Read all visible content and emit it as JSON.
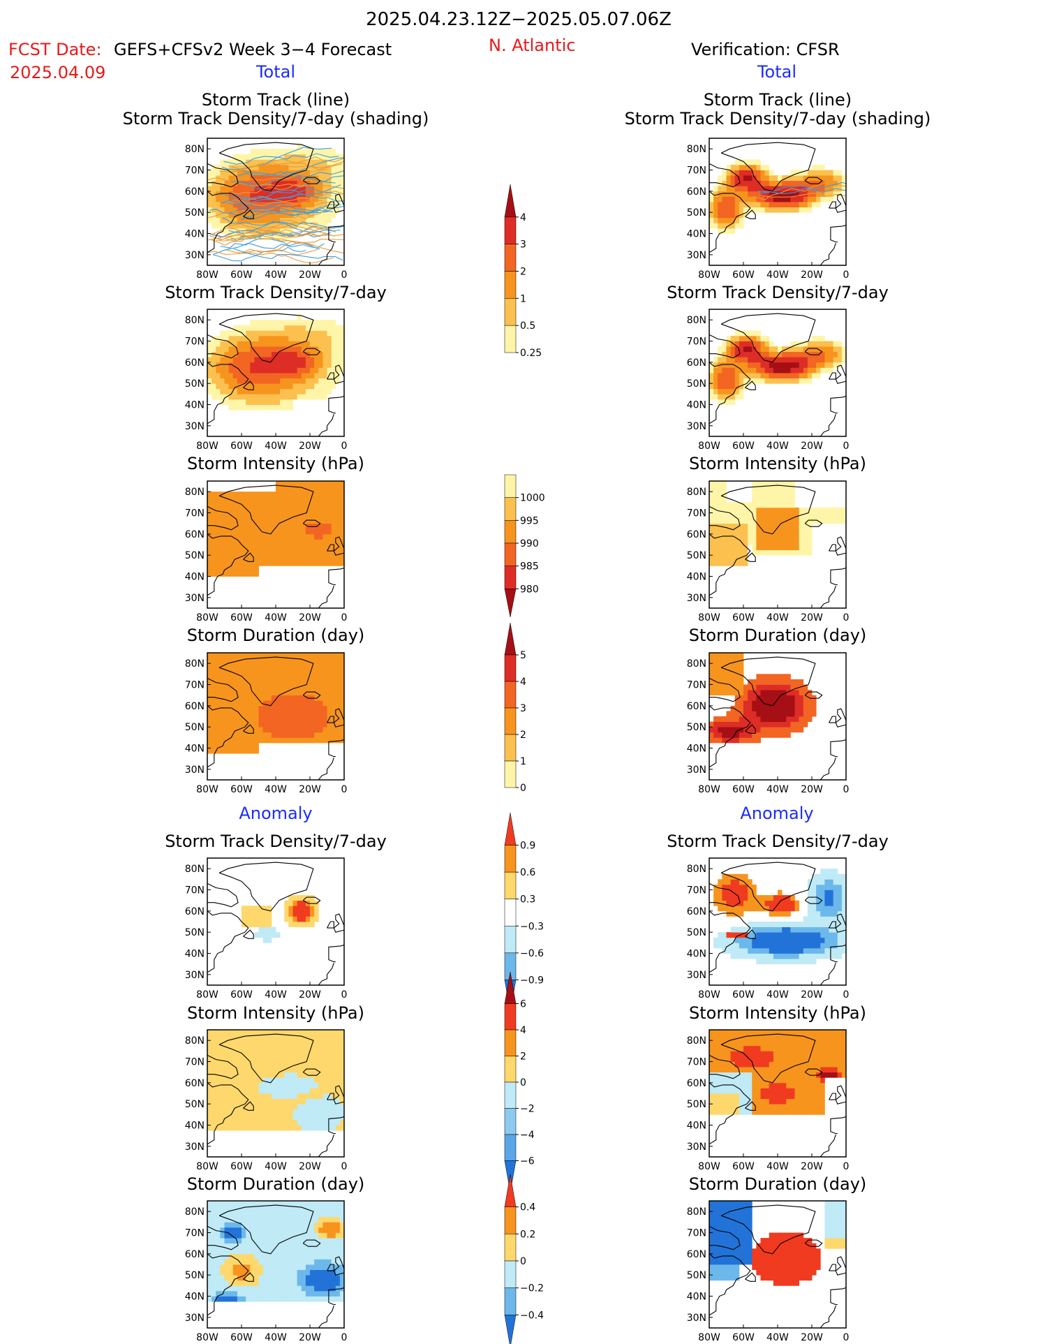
{
  "header": {
    "title": "2025.04.23.12Z−2025.05.07.06Z",
    "fcst_label": "FCST Date:",
    "fcst_date": "2025.04.09",
    "model": "GEFS+CFSv2 Week 3−4 Forecast",
    "region": "N. Atlantic",
    "verification": "Verification: CFSR",
    "left_total": "Total",
    "right_total": "Total",
    "left_anomaly": "Anomaly",
    "right_anomaly": "Anomaly"
  },
  "colors": {
    "title": "#000000",
    "accent_red": "#e8191b",
    "accent_blue": "#1a2bff"
  },
  "axes": {
    "lat_labels": [
      "80N",
      "70N",
      "60N",
      "50N",
      "40N",
      "30N"
    ],
    "lon_labels": [
      "80W",
      "60W",
      "40W",
      "20W",
      "0"
    ]
  },
  "chart_data": [
    {
      "type": "heatmap",
      "panel": "fcst-track-total",
      "title": "Storm Track (line)",
      "subtitle": "Storm Track Density/7-day (shading)",
      "field": "density_total_tracks",
      "ylim": [
        25,
        85
      ],
      "xlim": [
        -80,
        0
      ]
    },
    {
      "type": "heatmap",
      "panel": "fcst-density-total",
      "title": "Storm Track Density/7-day",
      "field": "density_total_fcst",
      "ylim": [
        25,
        85
      ],
      "xlim": [
        -80,
        0
      ]
    },
    {
      "type": "heatmap",
      "panel": "fcst-intensity-total",
      "title": "Storm Intensity (hPa)",
      "field": "intensity_total_fcst",
      "ylim": [
        25,
        85
      ],
      "xlim": [
        -80,
        0
      ]
    },
    {
      "type": "heatmap",
      "panel": "fcst-duration-total",
      "title": "Storm Duration (day)",
      "field": "duration_total_fcst",
      "ylim": [
        25,
        85
      ],
      "xlim": [
        -80,
        0
      ]
    },
    {
      "type": "heatmap",
      "panel": "fcst-density-anom",
      "title": "Storm Track Density/7-day",
      "field": "density_anom_fcst",
      "ylim": [
        25,
        85
      ],
      "xlim": [
        -80,
        0
      ]
    },
    {
      "type": "heatmap",
      "panel": "fcst-intensity-anom",
      "title": "Storm Intensity (hPa)",
      "field": "intensity_anom_fcst",
      "ylim": [
        25,
        85
      ],
      "xlim": [
        -80,
        0
      ]
    },
    {
      "type": "heatmap",
      "panel": "fcst-duration-anom",
      "title": "Storm Duration (day)",
      "field": "duration_anom_fcst",
      "ylim": [
        25,
        85
      ],
      "xlim": [
        -80,
        0
      ]
    },
    {
      "type": "heatmap",
      "panel": "ver-track-total",
      "title": "Storm Track (line)",
      "subtitle": "Storm Track Density/7-day (shading)",
      "field": "density_total_ver",
      "ylim": [
        25,
        85
      ],
      "xlim": [
        -80,
        0
      ]
    },
    {
      "type": "heatmap",
      "panel": "ver-density-total",
      "title": "Storm Track Density/7-day",
      "field": "density_total_ver",
      "ylim": [
        25,
        85
      ],
      "xlim": [
        -80,
        0
      ]
    },
    {
      "type": "heatmap",
      "panel": "ver-intensity-total",
      "title": "Storm Intensity (hPa)",
      "field": "intensity_total_ver",
      "ylim": [
        25,
        85
      ],
      "xlim": [
        -80,
        0
      ]
    },
    {
      "type": "heatmap",
      "panel": "ver-duration-total",
      "title": "Storm Duration (day)",
      "field": "duration_total_ver",
      "ylim": [
        25,
        85
      ],
      "xlim": [
        -80,
        0
      ]
    },
    {
      "type": "heatmap",
      "panel": "ver-density-anom",
      "title": "Storm Track Density/7-day",
      "field": "density_anom_ver",
      "ylim": [
        25,
        85
      ],
      "xlim": [
        -80,
        0
      ]
    },
    {
      "type": "heatmap",
      "panel": "ver-intensity-anom",
      "title": "Storm Intensity (hPa)",
      "field": "intensity_anom_ver",
      "ylim": [
        25,
        85
      ],
      "xlim": [
        -80,
        0
      ]
    },
    {
      "type": "heatmap",
      "panel": "ver-duration-anom",
      "title": "Storm Duration (day)",
      "field": "duration_anom_ver",
      "ylim": [
        25,
        85
      ],
      "xlim": [
        -80,
        0
      ]
    }
  ],
  "colorbars": [
    {
      "id": "density-total",
      "labels": [
        "4",
        "3",
        "2",
        "1",
        "0.5",
        "0.25"
      ],
      "colors": [
        "#a50f15",
        "#de2d26",
        "#f26522",
        "#f7941d",
        "#fbc04e",
        "#fef5a8"
      ]
    },
    {
      "id": "intensity-total",
      "labels": [
        "1000",
        "995",
        "990",
        "985",
        "980"
      ],
      "colors": [
        "#fef5a8",
        "#fbc04e",
        "#f7941d",
        "#f26522",
        "#de2d26",
        "#a50f15"
      ]
    },
    {
      "id": "duration-total",
      "labels": [
        "5",
        "4",
        "3",
        "2",
        "1",
        "0"
      ],
      "colors": [
        "#a50f15",
        "#de2d26",
        "#f26522",
        "#f7941d",
        "#fbc04e",
        "#fef5a8"
      ]
    },
    {
      "id": "density-anom",
      "labels": [
        "0.9",
        "0.6",
        "0.3",
        "−0.3",
        "−0.6",
        "−0.9"
      ],
      "colors": [
        "#f03b20",
        "#f7941d",
        "#fed86c",
        "#ffffff",
        "#bfeaf6",
        "#6cb8ea",
        "#2273d8"
      ]
    },
    {
      "id": "intensity-anom",
      "labels": [
        "6",
        "4",
        "2",
        "0",
        "−2",
        "−4",
        "−6"
      ],
      "colors": [
        "#a50f15",
        "#f03b20",
        "#f7941d",
        "#fed86c",
        "#bfeaf6",
        "#8ec9ef",
        "#5aa6e8",
        "#2273d8"
      ]
    },
    {
      "id": "duration-anom",
      "labels": [
        "0.4",
        "0.2",
        "0",
        "−0.2",
        "−0.4"
      ],
      "colors": [
        "#f03b20",
        "#f7941d",
        "#fed86c",
        "#bfeaf6",
        "#6cb8ea",
        "#2273d8"
      ]
    }
  ]
}
